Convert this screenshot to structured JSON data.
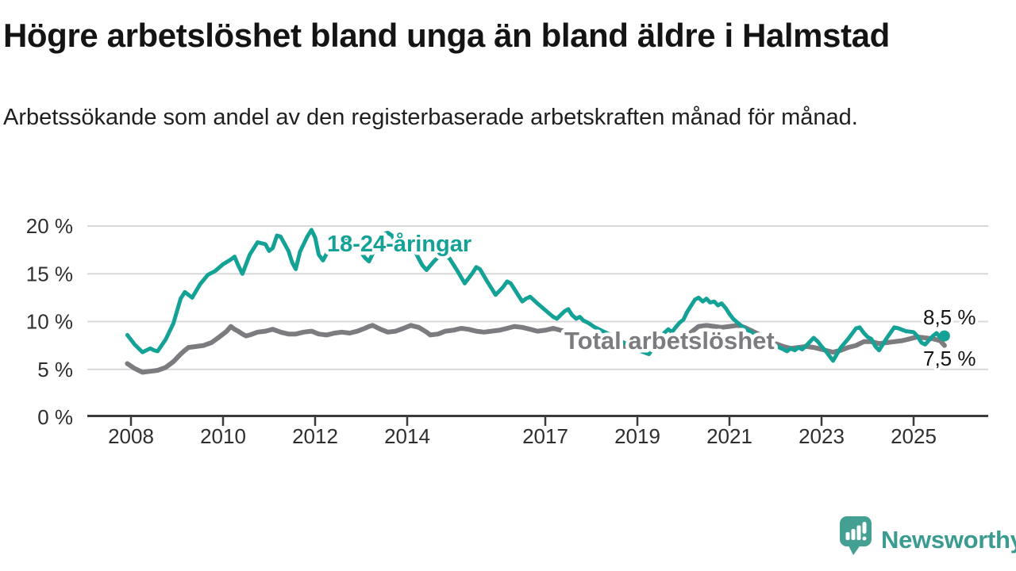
{
  "header": {
    "title": "Högre arbetslöshet bland unga än bland äldre i Halmstad",
    "subtitle": "Arbetssökande som andel av den registerbaserade arbetskraften månad för månad."
  },
  "chart_data": {
    "type": "line",
    "title": "Högre arbetslöshet bland unga än bland äldre i Halmstad",
    "subtitle": "Arbetssökande som andel av den registerbaserade arbetskraften månad för månad.",
    "unit": "%",
    "grid": true,
    "legend_position": "inline-labels",
    "x_axis": {
      "tick_labels": [
        "2008",
        "2010",
        "2012",
        "2014",
        "2017",
        "2019",
        "2021",
        "2023",
        "2025"
      ],
      "tick_values": [
        2008,
        2010,
        2012,
        2014,
        2017,
        2019,
        2021,
        2023,
        2025
      ],
      "range": [
        2007.05,
        2026.4
      ]
    },
    "y_axis": {
      "tick_labels": [
        "0 %",
        "5 %",
        "10 %",
        "15 %",
        "20 %"
      ],
      "tick_values": [
        0,
        5,
        10,
        15,
        20
      ],
      "range": [
        0,
        22.9
      ]
    },
    "series": [
      {
        "name": "18-24-åringar",
        "color": "#14a296",
        "line_width": 5,
        "end_dot": true,
        "end_label": "8,5 %",
        "last_value": 8.5,
        "points": [
          [
            2007.92,
            8.6
          ],
          [
            2008.08,
            7.6
          ],
          [
            2008.25,
            6.8
          ],
          [
            2008.42,
            7.2
          ],
          [
            2008.5,
            7.0
          ],
          [
            2008.58,
            6.9
          ],
          [
            2008.75,
            8.1
          ],
          [
            2008.92,
            9.8
          ],
          [
            2009.08,
            12.4
          ],
          [
            2009.17,
            13.1
          ],
          [
            2009.33,
            12.5
          ],
          [
            2009.5,
            13.9
          ],
          [
            2009.67,
            14.9
          ],
          [
            2009.83,
            15.3
          ],
          [
            2010.0,
            16.0
          ],
          [
            2010.17,
            16.5
          ],
          [
            2010.25,
            16.8
          ],
          [
            2010.33,
            15.9
          ],
          [
            2010.42,
            15.0
          ],
          [
            2010.58,
            17.0
          ],
          [
            2010.75,
            18.3
          ],
          [
            2010.92,
            18.1
          ],
          [
            2011.0,
            17.4
          ],
          [
            2011.08,
            17.7
          ],
          [
            2011.17,
            19.0
          ],
          [
            2011.25,
            18.9
          ],
          [
            2011.42,
            17.4
          ],
          [
            2011.5,
            16.2
          ],
          [
            2011.58,
            15.5
          ],
          [
            2011.67,
            17.3
          ],
          [
            2011.83,
            18.9
          ],
          [
            2011.92,
            19.6
          ],
          [
            2012.0,
            18.8
          ],
          [
            2012.08,
            17.0
          ],
          [
            2012.17,
            16.4
          ],
          [
            2012.33,
            17.8
          ],
          [
            2012.42,
            18.4
          ],
          [
            2012.5,
            18.2
          ],
          [
            2012.58,
            18.6
          ],
          [
            2012.75,
            18.4
          ],
          [
            2012.92,
            17.8
          ],
          [
            2013.08,
            16.7
          ],
          [
            2013.17,
            16.3
          ],
          [
            2013.33,
            17.9
          ],
          [
            2013.5,
            19.2
          ],
          [
            2013.58,
            19.3
          ],
          [
            2013.67,
            19.0
          ],
          [
            2013.75,
            18.3
          ],
          [
            2013.83,
            18.6
          ],
          [
            2013.92,
            18.1
          ],
          [
            2014.08,
            17.7
          ],
          [
            2014.17,
            17.4
          ],
          [
            2014.25,
            16.6
          ],
          [
            2014.33,
            15.9
          ],
          [
            2014.42,
            15.4
          ],
          [
            2014.58,
            16.3
          ],
          [
            2014.75,
            17.1
          ],
          [
            2014.83,
            16.9
          ],
          [
            2014.92,
            16.6
          ],
          [
            2015.08,
            15.4
          ],
          [
            2015.25,
            14.0
          ],
          [
            2015.42,
            15.1
          ],
          [
            2015.5,
            15.7
          ],
          [
            2015.58,
            15.5
          ],
          [
            2015.75,
            14.1
          ],
          [
            2015.92,
            12.8
          ],
          [
            2016.08,
            13.6
          ],
          [
            2016.17,
            14.2
          ],
          [
            2016.25,
            14.0
          ],
          [
            2016.42,
            12.7
          ],
          [
            2016.5,
            12.1
          ],
          [
            2016.58,
            12.4
          ],
          [
            2016.67,
            12.6
          ],
          [
            2016.83,
            11.9
          ],
          [
            2017.0,
            11.2
          ],
          [
            2017.17,
            10.5
          ],
          [
            2017.25,
            10.3
          ],
          [
            2017.42,
            11.1
          ],
          [
            2017.5,
            11.3
          ],
          [
            2017.58,
            10.7
          ],
          [
            2017.67,
            10.3
          ],
          [
            2017.75,
            10.5
          ],
          [
            2017.83,
            10.1
          ],
          [
            2017.92,
            9.9
          ],
          [
            2018.08,
            9.4
          ],
          [
            2018.25,
            9.0
          ],
          [
            2018.42,
            8.6
          ],
          [
            2018.58,
            8.1
          ],
          [
            2018.75,
            7.7
          ],
          [
            2018.92,
            7.2
          ],
          [
            2019.08,
            6.9
          ],
          [
            2019.25,
            6.6
          ],
          [
            2019.42,
            7.7
          ],
          [
            2019.58,
            8.8
          ],
          [
            2019.67,
            9.2
          ],
          [
            2019.75,
            8.9
          ],
          [
            2019.83,
            9.4
          ],
          [
            2019.92,
            9.9
          ],
          [
            2020.0,
            10.2
          ],
          [
            2020.08,
            11.0
          ],
          [
            2020.17,
            11.7
          ],
          [
            2020.25,
            12.3
          ],
          [
            2020.33,
            12.5
          ],
          [
            2020.42,
            12.1
          ],
          [
            2020.5,
            12.4
          ],
          [
            2020.58,
            12.0
          ],
          [
            2020.67,
            12.1
          ],
          [
            2020.75,
            11.7
          ],
          [
            2020.83,
            11.9
          ],
          [
            2020.92,
            11.4
          ],
          [
            2021.0,
            10.8
          ],
          [
            2021.08,
            10.3
          ],
          [
            2021.17,
            9.9
          ],
          [
            2021.33,
            9.3
          ],
          [
            2021.5,
            8.8
          ],
          [
            2021.67,
            8.3
          ],
          [
            2021.83,
            7.9
          ],
          [
            2022.0,
            7.5
          ],
          [
            2022.08,
            7.3
          ],
          [
            2022.17,
            7.1
          ],
          [
            2022.25,
            6.9
          ],
          [
            2022.33,
            7.2
          ],
          [
            2022.42,
            7.0
          ],
          [
            2022.5,
            7.3
          ],
          [
            2022.58,
            7.1
          ],
          [
            2022.67,
            7.5
          ],
          [
            2022.83,
            8.3
          ],
          [
            2022.92,
            7.9
          ],
          [
            2023.0,
            7.4
          ],
          [
            2023.08,
            7.0
          ],
          [
            2023.25,
            5.9
          ],
          [
            2023.42,
            7.3
          ],
          [
            2023.58,
            8.2
          ],
          [
            2023.75,
            9.3
          ],
          [
            2023.83,
            9.4
          ],
          [
            2023.92,
            8.8
          ],
          [
            2024.0,
            8.4
          ],
          [
            2024.08,
            8.2
          ],
          [
            2024.17,
            7.4
          ],
          [
            2024.25,
            7.0
          ],
          [
            2024.42,
            8.3
          ],
          [
            2024.58,
            9.4
          ],
          [
            2024.67,
            9.3
          ],
          [
            2024.83,
            9.0
          ],
          [
            2025.0,
            8.9
          ],
          [
            2025.08,
            8.5
          ],
          [
            2025.17,
            7.8
          ],
          [
            2025.25,
            7.6
          ],
          [
            2025.42,
            8.5
          ],
          [
            2025.5,
            8.8
          ],
          [
            2025.58,
            8.3
          ],
          [
            2025.67,
            8.5
          ]
        ]
      },
      {
        "name": "Total arbetslöshet",
        "color": "#7c7c80",
        "line_width": 6,
        "end_dot": false,
        "end_label": "7,5 %",
        "last_value": 7.5,
        "points": [
          [
            2007.92,
            5.6
          ],
          [
            2008.08,
            5.1
          ],
          [
            2008.25,
            4.7
          ],
          [
            2008.42,
            4.8
          ],
          [
            2008.58,
            4.9
          ],
          [
            2008.75,
            5.2
          ],
          [
            2008.92,
            5.8
          ],
          [
            2009.08,
            6.6
          ],
          [
            2009.17,
            7.0
          ],
          [
            2009.25,
            7.3
          ],
          [
            2009.42,
            7.4
          ],
          [
            2009.58,
            7.5
          ],
          [
            2009.75,
            7.8
          ],
          [
            2009.92,
            8.4
          ],
          [
            2010.0,
            8.7
          ],
          [
            2010.08,
            9.0
          ],
          [
            2010.17,
            9.5
          ],
          [
            2010.25,
            9.2
          ],
          [
            2010.33,
            9.0
          ],
          [
            2010.42,
            8.7
          ],
          [
            2010.5,
            8.5
          ],
          [
            2010.58,
            8.6
          ],
          [
            2010.75,
            8.9
          ],
          [
            2010.92,
            9.0
          ],
          [
            2011.08,
            9.2
          ],
          [
            2011.25,
            8.9
          ],
          [
            2011.42,
            8.7
          ],
          [
            2011.58,
            8.7
          ],
          [
            2011.75,
            8.9
          ],
          [
            2011.92,
            9.0
          ],
          [
            2012.08,
            8.7
          ],
          [
            2012.25,
            8.6
          ],
          [
            2012.42,
            8.8
          ],
          [
            2012.58,
            8.9
          ],
          [
            2012.75,
            8.8
          ],
          [
            2012.92,
            9.0
          ],
          [
            2013.08,
            9.3
          ],
          [
            2013.17,
            9.5
          ],
          [
            2013.25,
            9.6
          ],
          [
            2013.42,
            9.2
          ],
          [
            2013.58,
            8.9
          ],
          [
            2013.75,
            9.0
          ],
          [
            2013.92,
            9.3
          ],
          [
            2014.08,
            9.6
          ],
          [
            2014.25,
            9.4
          ],
          [
            2014.42,
            8.9
          ],
          [
            2014.5,
            8.6
          ],
          [
            2014.67,
            8.7
          ],
          [
            2014.83,
            9.0
          ],
          [
            2015.0,
            9.1
          ],
          [
            2015.17,
            9.3
          ],
          [
            2015.33,
            9.2
          ],
          [
            2015.5,
            9.0
          ],
          [
            2015.67,
            8.9
          ],
          [
            2015.83,
            9.0
          ],
          [
            2016.0,
            9.1
          ],
          [
            2016.17,
            9.3
          ],
          [
            2016.33,
            9.5
          ],
          [
            2016.5,
            9.4
          ],
          [
            2016.67,
            9.2
          ],
          [
            2016.83,
            9.0
          ],
          [
            2017.0,
            9.1
          ],
          [
            2017.17,
            9.3
          ],
          [
            2017.33,
            9.1
          ],
          [
            2017.5,
            8.9
          ],
          [
            2017.67,
            8.7
          ],
          [
            2017.83,
            8.5
          ],
          [
            2018.0,
            8.2
          ],
          [
            2018.17,
            7.9
          ],
          [
            2018.33,
            7.7
          ],
          [
            2018.5,
            7.5
          ],
          [
            2018.75,
            7.4
          ],
          [
            2019.0,
            7.4
          ],
          [
            2019.17,
            7.3
          ],
          [
            2019.33,
            7.4
          ],
          [
            2019.5,
            7.5
          ],
          [
            2019.67,
            7.6
          ],
          [
            2019.83,
            7.8
          ],
          [
            2020.0,
            8.1
          ],
          [
            2020.17,
            8.9
          ],
          [
            2020.33,
            9.5
          ],
          [
            2020.5,
            9.6
          ],
          [
            2020.67,
            9.5
          ],
          [
            2020.83,
            9.4
          ],
          [
            2021.0,
            9.5
          ],
          [
            2021.17,
            9.6
          ],
          [
            2021.33,
            9.4
          ],
          [
            2021.5,
            9.0
          ],
          [
            2021.67,
            8.6
          ],
          [
            2021.83,
            8.1
          ],
          [
            2022.0,
            7.7
          ],
          [
            2022.17,
            7.4
          ],
          [
            2022.33,
            7.2
          ],
          [
            2022.5,
            7.3
          ],
          [
            2022.67,
            7.4
          ],
          [
            2022.83,
            7.3
          ],
          [
            2023.0,
            7.1
          ],
          [
            2023.25,
            6.8
          ],
          [
            2023.42,
            7.0
          ],
          [
            2023.58,
            7.3
          ],
          [
            2023.75,
            7.5
          ],
          [
            2023.92,
            7.9
          ],
          [
            2024.08,
            7.9
          ],
          [
            2024.25,
            7.7
          ],
          [
            2024.42,
            7.8
          ],
          [
            2024.58,
            7.9
          ],
          [
            2024.75,
            8.0
          ],
          [
            2024.92,
            8.2
          ],
          [
            2025.08,
            8.4
          ],
          [
            2025.25,
            8.3
          ],
          [
            2025.42,
            8.2
          ],
          [
            2025.58,
            8.0
          ],
          [
            2025.67,
            7.5
          ]
        ]
      }
    ]
  },
  "branding": {
    "wordmark": "Newsworthy",
    "icon": "newsworthy-speech-bubble-bar-chart-icon",
    "icon_color": "#43a093",
    "text_color": "#3a9b90"
  }
}
